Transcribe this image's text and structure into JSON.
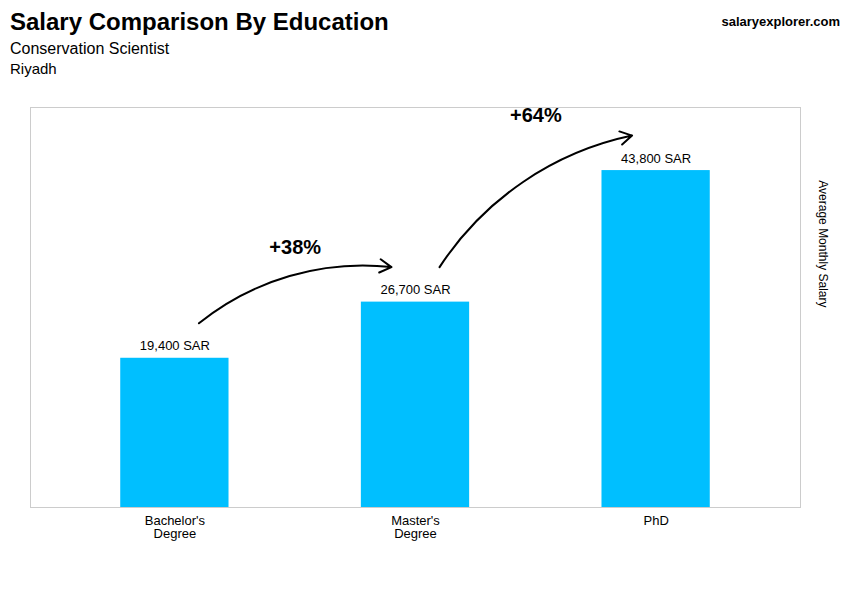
{
  "chart_data": {
    "type": "bar",
    "title": "Salary Comparison By Education",
    "subtitle": "Conservation Scientist",
    "annotations": [
      "Riyadh",
      "salaryexplorer.com"
    ],
    "arrow_labels": [
      "+38%",
      "+64%"
    ],
    "ylabel": "Average Monthly Salary",
    "categories": [
      "Bachelor's\nDegree",
      "Master's\nDegree",
      "PhD"
    ],
    "values": [
      19400,
      26700,
      43800
    ],
    "value_labels": [
      "19,400 SAR",
      "26,700 SAR",
      "43,800 SAR"
    ],
    "data_labels": true,
    "color": "#00BFFF",
    "ylim": [
      0,
      52000
    ],
    "grid": false,
    "tick_labels": "x"
  }
}
